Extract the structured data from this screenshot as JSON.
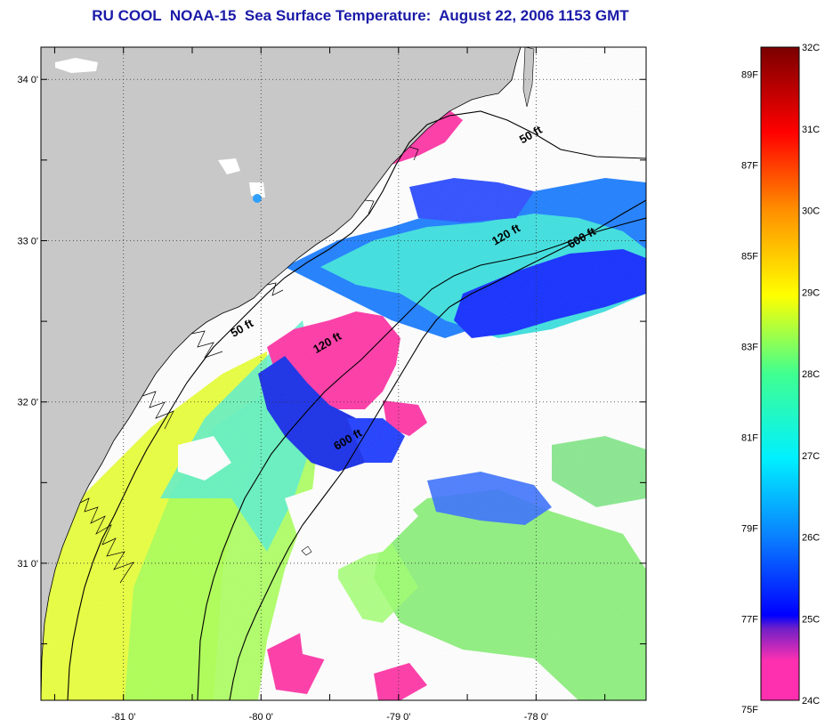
{
  "title": "RU COOL  NOAA-15  Sea Surface Temperature:  August 22, 2006 1153 GMT",
  "map": {
    "lon_range": [
      -81.6,
      -77.2
    ],
    "lat_range": [
      30.15,
      34.2
    ],
    "lon_ticks": [
      {
        "value": -81,
        "label": "-81 0'"
      },
      {
        "value": -80,
        "label": "-80 0'"
      },
      {
        "value": -79,
        "label": "-79 0'"
      },
      {
        "value": -78,
        "label": "-78 0'"
      }
    ],
    "lat_ticks": [
      {
        "value": 34,
        "label": "34 0'"
      },
      {
        "value": 33,
        "label": "33 0'"
      },
      {
        "value": 32,
        "label": "32 0'"
      },
      {
        "value": 31,
        "label": "31 0'"
      }
    ],
    "grid": "dotted",
    "colors": {
      "land": "#c8c8c8",
      "cloud": "#ffffff",
      "coast": "#000000"
    },
    "contour_labels": [
      {
        "text": "50 ft",
        "lon": -78.1,
        "lat": 33.6
      },
      {
        "text": "120 ft",
        "lon": -78.3,
        "lat": 32.97
      },
      {
        "text": "600 ft",
        "lon": -77.75,
        "lat": 32.95
      },
      {
        "text": "50 ft",
        "lon": -80.2,
        "lat": 32.4
      },
      {
        "text": "120 ft",
        "lon": -79.6,
        "lat": 32.3
      },
      {
        "text": "600 ft",
        "lon": -79.45,
        "lat": 31.7
      }
    ]
  },
  "colorbar": {
    "celsius_range": [
      24,
      32
    ],
    "celsius_labels": [
      "32C",
      "31C",
      "30C",
      "29C",
      "28C",
      "27C",
      "26C",
      "25C",
      "24C"
    ],
    "fahrenheit_labels": [
      {
        "label": "89F",
        "value": 89
      },
      {
        "label": "87F",
        "value": 87
      },
      {
        "label": "85F",
        "value": 85
      },
      {
        "label": "83F",
        "value": 83
      },
      {
        "label": "81F",
        "value": 81
      },
      {
        "label": "79F",
        "value": 79
      },
      {
        "label": "77F",
        "value": 77
      },
      {
        "label": "75F",
        "value": 75
      }
    ],
    "stops": [
      "#ff30b0",
      "#a030e0",
      "#0000ff",
      "#0a80ff",
      "#00e8ff",
      "#40ff90",
      "#ffff00",
      "#ff9000",
      "#ff0000",
      "#7a0000"
    ]
  }
}
